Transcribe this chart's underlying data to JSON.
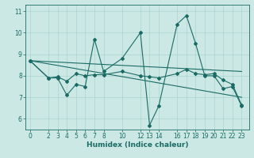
{
  "title": "",
  "xlabel": "Humidex (Indice chaleur)",
  "bg_color": "#cce8e4",
  "line_color": "#1a6b65",
  "grid_color": "#aad4cf",
  "xticks": [
    0,
    2,
    3,
    4,
    5,
    6,
    7,
    8,
    10,
    12,
    13,
    14,
    16,
    17,
    18,
    19,
    20,
    21,
    22,
    23
  ],
  "yticks": [
    6,
    7,
    8,
    9,
    10,
    11
  ],
  "ylim": [
    5.5,
    11.3
  ],
  "xlim": [
    -0.5,
    23.8
  ],
  "line1_x": [
    0,
    2,
    3,
    4,
    5,
    6,
    7,
    8,
    10,
    12,
    13,
    14,
    16,
    17,
    18,
    19,
    20,
    21,
    22,
    23
  ],
  "line1_y": [
    8.7,
    7.9,
    7.9,
    7.1,
    7.6,
    7.5,
    9.7,
    8.2,
    8.8,
    10.0,
    5.7,
    6.6,
    10.4,
    10.8,
    9.5,
    8.0,
    8.0,
    7.4,
    7.5,
    6.6
  ],
  "line2_x": [
    0,
    23
  ],
  "line2_y": [
    8.7,
    8.2
  ],
  "line3_x": [
    0,
    23
  ],
  "line3_y": [
    8.7,
    7.0
  ],
  "line4_x": [
    0,
    2,
    3,
    4,
    5,
    6,
    7,
    8,
    10,
    12,
    13,
    14,
    16,
    17,
    18,
    19,
    20,
    21,
    22,
    23
  ],
  "line4_y": [
    8.7,
    7.9,
    7.95,
    7.75,
    8.1,
    8.0,
    8.05,
    8.05,
    8.2,
    8.0,
    7.95,
    7.9,
    8.1,
    8.3,
    8.1,
    8.05,
    8.1,
    7.8,
    7.6,
    6.65
  ],
  "font_size_label": 6.5,
  "font_size_tick": 5.5,
  "lw": 0.8,
  "ms": 2.0
}
